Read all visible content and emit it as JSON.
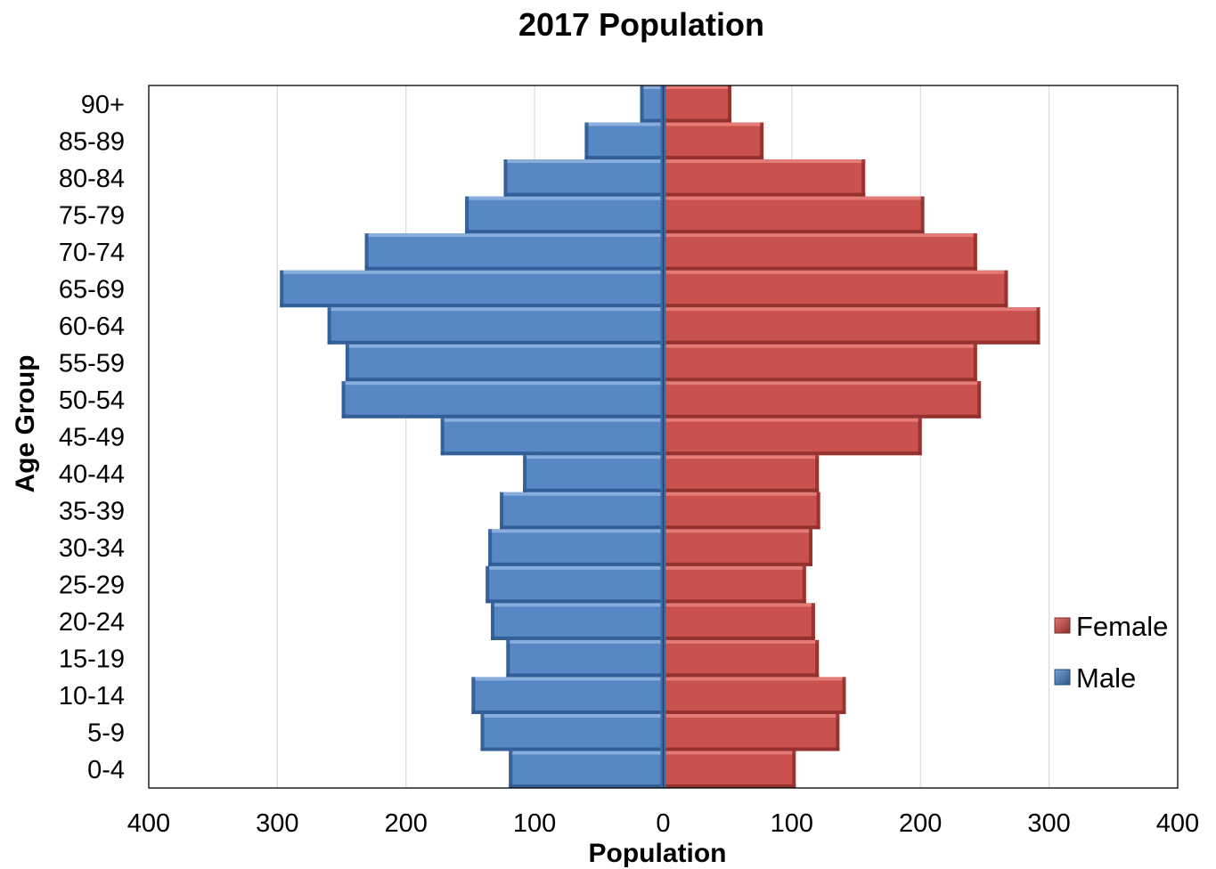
{
  "chart_data": {
    "type": "bar",
    "orientation": "horizontal",
    "layout": "population-pyramid",
    "title": "2017 Population",
    "xlabel": "Population",
    "ylabel": "Age Group",
    "xlim": [
      -400,
      400
    ],
    "x_ticks": [
      -400,
      -300,
      -200,
      -100,
      0,
      100,
      200,
      300,
      400
    ],
    "x_tick_labels": [
      "400",
      "300",
      "200",
      "100",
      "0",
      "100",
      "200",
      "300",
      "400"
    ],
    "grid": "vertical",
    "legend_position": "bottom-right",
    "categories": [
      "0-4",
      "5-9",
      "10-14",
      "15-19",
      "20-24",
      "25-29",
      "30-34",
      "35-39",
      "40-44",
      "45-49",
      "50-54",
      "55-59",
      "60-64",
      "65-69",
      "70-74",
      "75-79",
      "80-84",
      "85-89",
      "90+"
    ],
    "series": [
      {
        "name": "Female",
        "color": "#C0504D",
        "values": [
          103,
          137,
          142,
          121,
          118,
          111,
          116,
          122,
          121,
          201,
          247,
          244,
          293,
          268,
          244,
          203,
          157,
          78,
          53
        ]
      },
      {
        "name": "Male",
        "color": "#4F81BD",
        "values": [
          120,
          142,
          149,
          122,
          134,
          138,
          136,
          127,
          109,
          173,
          250,
          247,
          261,
          298,
          232,
          154,
          124,
          61,
          18
        ]
      }
    ]
  }
}
